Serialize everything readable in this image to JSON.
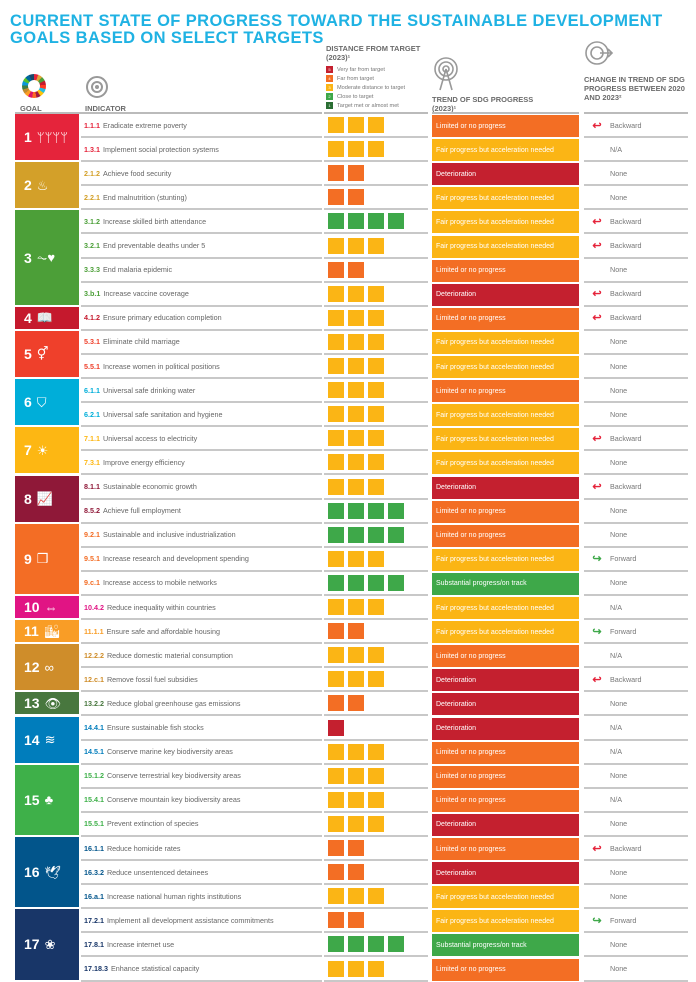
{
  "title": "CURRENT STATE OF PROGRESS TOWARD THE SUSTAINABLE DEVELOPMENT GOALS BASED ON SELECT TARGETS",
  "headers": {
    "goal": "GOAL",
    "indicator": "INDICATOR",
    "distance": "DISTANCE FROM TARGET (2023)¹",
    "trend": "TREND OF SDG PROGRESS (2023)¹",
    "change": "CHANGE IN TREND OF SDG PROGRESS BETWEEN 2020 AND 2023²"
  },
  "legend": [
    {
      "level": "5",
      "label": "Very far from target",
      "color": "#c4202f"
    },
    {
      "level": "4",
      "label": "Far from target",
      "color": "#f36e24"
    },
    {
      "level": "3",
      "label": "Moderate distance to target",
      "color": "#fbb515"
    },
    {
      "level": "2",
      "label": "Close to target",
      "color": "#3ea849"
    },
    {
      "level": "1",
      "label": "Target met or almost met",
      "color": "#2a6e33"
    }
  ],
  "colors": {
    "deterioration": "#c4202f",
    "limited": "#f36e24",
    "fair": "#fbb515",
    "substantial": "#3ea849",
    "backward_arrow": "#e5243b",
    "forward_arrow": "#3ea849"
  },
  "goals": [
    {
      "num": "1",
      "icon": "people-icon",
      "glyph": "ᛘᛘᛘᛘ",
      "color": "#e5243b",
      "rows": 2
    },
    {
      "num": "2",
      "icon": "bowl-icon",
      "glyph": "♨",
      "color": "#d3a029",
      "rows": 2
    },
    {
      "num": "3",
      "icon": "heartbeat-icon",
      "glyph": "⏦♥",
      "color": "#4c9f38",
      "rows": 4
    },
    {
      "num": "4",
      "icon": "book-icon",
      "glyph": "📖",
      "color": "#c5192d",
      "rows": 1
    },
    {
      "num": "5",
      "icon": "gender-icon",
      "glyph": "⚥",
      "color": "#ef402b",
      "rows": 2
    },
    {
      "num": "6",
      "icon": "water-drop-icon",
      "glyph": "⛉",
      "color": "#00aed9",
      "rows": 2
    },
    {
      "num": "7",
      "icon": "sun-icon",
      "glyph": "☀",
      "color": "#fdb713",
      "rows": 2
    },
    {
      "num": "8",
      "icon": "growth-chart-icon",
      "glyph": "📈",
      "color": "#8f1838",
      "rows": 2
    },
    {
      "num": "9",
      "icon": "cubes-icon",
      "glyph": "❒",
      "color": "#f36d25",
      "rows": 3
    },
    {
      "num": "10",
      "icon": "equality-arrows-icon",
      "glyph": "⇔",
      "color": "#e11484",
      "rows": 1
    },
    {
      "num": "11",
      "icon": "city-icon",
      "glyph": "🏙",
      "color": "#f99d26",
      "rows": 1
    },
    {
      "num": "12",
      "icon": "infinity-icon",
      "glyph": "∞",
      "color": "#cf8d2a",
      "rows": 2
    },
    {
      "num": "13",
      "icon": "eye-globe-icon",
      "glyph": "👁",
      "color": "#48773e",
      "rows": 1
    },
    {
      "num": "14",
      "icon": "fish-icon",
      "glyph": "≋",
      "color": "#007dbc",
      "rows": 2
    },
    {
      "num": "15",
      "icon": "tree-icon",
      "glyph": "♣",
      "color": "#3eb049",
      "rows": 3
    },
    {
      "num": "16",
      "icon": "dove-icon",
      "glyph": "🕊",
      "color": "#02558b",
      "rows": 3
    },
    {
      "num": "17",
      "icon": "flower-icon",
      "glyph": "❀",
      "color": "#183668",
      "rows": 3
    }
  ],
  "rows": [
    {
      "code": "1.1.1",
      "text": "Eradicate extreme poverty",
      "codeColor": "#e5243b",
      "squares": 3,
      "sqColor": "#fbb515",
      "trend": "Limited or no progress",
      "trendColor": "#f36e24",
      "change": "Backward",
      "arrow": "backward"
    },
    {
      "code": "1.3.1",
      "text": "Implement social protection systems",
      "codeColor": "#e5243b",
      "squares": 3,
      "sqColor": "#fbb515",
      "trend": "Fair progress but acceleration needed",
      "trendColor": "#fbb515",
      "change": "N/A",
      "arrow": "none"
    },
    {
      "code": "2.1.2",
      "text": "Achieve food security",
      "codeColor": "#d3a029",
      "squares": 2,
      "sqColor": "#f36e24",
      "trend": "Deterioration",
      "trendColor": "#c4202f",
      "change": "None",
      "arrow": "none"
    },
    {
      "code": "2.2.1",
      "text": "End malnutrition (stunting)",
      "codeColor": "#d3a029",
      "squares": 2,
      "sqColor": "#f36e24",
      "trend": "Fair progress but acceleration needed",
      "trendColor": "#fbb515",
      "change": "None",
      "arrow": "none"
    },
    {
      "code": "3.1.2",
      "text": "Increase skilled birth attendance",
      "codeColor": "#4c9f38",
      "squares": 4,
      "sqColor": "#3ea849",
      "trend": "Fair progress but acceleration needed",
      "trendColor": "#fbb515",
      "change": "Backward",
      "arrow": "backward"
    },
    {
      "code": "3.2.1",
      "text": "End preventable deaths under 5",
      "codeColor": "#4c9f38",
      "squares": 3,
      "sqColor": "#fbb515",
      "trend": "Fair progress but acceleration needed",
      "trendColor": "#fbb515",
      "change": "Backward",
      "arrow": "backward"
    },
    {
      "code": "3.3.3",
      "text": "End malaria epidemic",
      "codeColor": "#4c9f38",
      "squares": 2,
      "sqColor": "#f36e24",
      "trend": "Limited or no progress",
      "trendColor": "#f36e24",
      "change": "None",
      "arrow": "none"
    },
    {
      "code": "3.b.1",
      "text": "Increase vaccine coverage",
      "codeColor": "#4c9f38",
      "squares": 3,
      "sqColor": "#fbb515",
      "trend": "Deterioration",
      "trendColor": "#c4202f",
      "change": "Backward",
      "arrow": "backward"
    },
    {
      "code": "4.1.2",
      "text": "Ensure primary education completion",
      "codeColor": "#c5192d",
      "squares": 3,
      "sqColor": "#fbb515",
      "trend": "Limited or no progress",
      "trendColor": "#f36e24",
      "change": "Backward",
      "arrow": "backward"
    },
    {
      "code": "5.3.1",
      "text": "Eliminate child marriage",
      "codeColor": "#ef402b",
      "squares": 3,
      "sqColor": "#fbb515",
      "trend": "Fair progress but acceleration needed",
      "trendColor": "#fbb515",
      "change": "None",
      "arrow": "none"
    },
    {
      "code": "5.5.1",
      "text": " Increase women in political positions",
      "codeColor": "#ef402b",
      "squares": 3,
      "sqColor": "#fbb515",
      "trend": "Fair progress but acceleration needed",
      "trendColor": "#fbb515",
      "change": "None",
      "arrow": "none"
    },
    {
      "code": "6.1.1",
      "text": "Universal safe drinking water",
      "codeColor": "#00aed9",
      "squares": 3,
      "sqColor": "#fbb515",
      "trend": "Limited or no progress",
      "trendColor": "#f36e24",
      "change": "None",
      "arrow": "none"
    },
    {
      "code": "6.2.1",
      "text": "Universal safe sanitation and hygiene",
      "codeColor": "#00aed9",
      "squares": 3,
      "sqColor": "#fbb515",
      "trend": "Fair progress but acceleration needed",
      "trendColor": "#fbb515",
      "change": "None",
      "arrow": "none"
    },
    {
      "code": "7.1.1",
      "text": "Universal access to electricity",
      "codeColor": "#fdb713",
      "squares": 3,
      "sqColor": "#fbb515",
      "trend": "Fair progress but acceleration needed",
      "trendColor": "#fbb515",
      "change": "Backward",
      "arrow": "backward"
    },
    {
      "code": "7.3.1",
      "text": "Improve energy efficiency",
      "codeColor": "#fdb713",
      "squares": 3,
      "sqColor": "#fbb515",
      "trend": "Fair progress but acceleration needed",
      "trendColor": "#fbb515",
      "change": "None",
      "arrow": "none"
    },
    {
      "code": "8.1.1",
      "text": "Sustainable economic growth",
      "codeColor": "#8f1838",
      "squares": 3,
      "sqColor": "#fbb515",
      "trend": "Deterioration",
      "trendColor": "#c4202f",
      "change": "Backward",
      "arrow": "backward"
    },
    {
      "code": "8.5.2",
      "text": "Achieve full employment",
      "codeColor": "#8f1838",
      "squares": 4,
      "sqColor": "#3ea849",
      "trend": "Limited or no progress",
      "trendColor": "#f36e24",
      "change": "None",
      "arrow": "none"
    },
    {
      "code": "9.2.1",
      "text": "Sustainable and inclusive industrialization",
      "codeColor": "#f36d25",
      "squares": 4,
      "sqColor": "#3ea849",
      "trend": "Limited or no progress",
      "trendColor": "#f36e24",
      "change": "None",
      "arrow": "none"
    },
    {
      "code": "9.5.1",
      "text": "Increase research and development spending",
      "codeColor": "#f36d25",
      "squares": 3,
      "sqColor": "#fbb515",
      "trend": "Fair progress but acceleration needed",
      "trendColor": "#fbb515",
      "change": "Forward",
      "arrow": "forward"
    },
    {
      "code": "9.c.1",
      "text": "Increase access to mobile networks",
      "codeColor": "#f36d25",
      "squares": 4,
      "sqColor": "#3ea849",
      "trend": "Substantial progress/on track",
      "trendColor": "#3ea849",
      "change": "None",
      "arrow": "none"
    },
    {
      "code": "10.4.2",
      "text": "Reduce inequality within countries",
      "codeColor": "#e11484",
      "squares": 3,
      "sqColor": "#fbb515",
      "trend": "Fair progress but acceleration needed",
      "trendColor": "#fbb515",
      "change": "N/A",
      "arrow": "none"
    },
    {
      "code": "11.1.1",
      "text": "Ensure safe and affordable housing",
      "codeColor": "#f99d26",
      "squares": 2,
      "sqColor": "#f36e24",
      "trend": "Fair progress but acceleration needed",
      "trendColor": "#fbb515",
      "change": "Forward",
      "arrow": "forward"
    },
    {
      "code": "12.2.2",
      "text": "Reduce domestic material consumption",
      "codeColor": "#cf8d2a",
      "squares": 3,
      "sqColor": "#fbb515",
      "trend": "Limited or no progress",
      "trendColor": "#f36e24",
      "change": "N/A",
      "arrow": "none"
    },
    {
      "code": "12.c.1",
      "text": "Remove fossil fuel subsidies",
      "codeColor": "#cf8d2a",
      "squares": 3,
      "sqColor": "#fbb515",
      "trend": "Deterioration",
      "trendColor": "#c4202f",
      "change": "Backward",
      "arrow": "backward"
    },
    {
      "code": "13.2.2",
      "text": "Reduce global greenhouse gas emissions",
      "codeColor": "#48773e",
      "squares": 2,
      "sqColor": "#f36e24",
      "trend": "Deterioration",
      "trendColor": "#c4202f",
      "change": "None",
      "arrow": "none"
    },
    {
      "code": "14.4.1",
      "text": "Ensure sustainable fish stocks",
      "codeColor": "#007dbc",
      "squares": 1,
      "sqColor": "#c4202f",
      "trend": "Deterioration",
      "trendColor": "#c4202f",
      "change": "N/A",
      "arrow": "none"
    },
    {
      "code": "14.5.1",
      "text": "Conserve marine key biodiversity areas",
      "codeColor": "#007dbc",
      "squares": 3,
      "sqColor": "#fbb515",
      "trend": "Limited or no progress",
      "trendColor": "#f36e24",
      "change": "N/A",
      "arrow": "none"
    },
    {
      "code": "15.1.2",
      "text": "Conserve terrestrial key biodiversity areas",
      "codeColor": "#3eb049",
      "squares": 3,
      "sqColor": "#fbb515",
      "trend": "Limited or no progress",
      "trendColor": "#f36e24",
      "change": "None",
      "arrow": "none"
    },
    {
      "code": "15.4.1",
      "text": "Conserve mountain key biodiversity areas",
      "codeColor": "#3eb049",
      "squares": 3,
      "sqColor": "#fbb515",
      "trend": "Limited or no progress",
      "trendColor": "#f36e24",
      "change": "N/A",
      "arrow": "none"
    },
    {
      "code": "15.5.1",
      "text": "Prevent extinction of species",
      "codeColor": "#3eb049",
      "squares": 3,
      "sqColor": "#fbb515",
      "trend": "Deterioration",
      "trendColor": "#c4202f",
      "change": "None",
      "arrow": "none"
    },
    {
      "code": "16.1.1",
      "text": "Reduce homicide rates",
      "codeColor": "#02558b",
      "squares": 2,
      "sqColor": "#f36e24",
      "trend": "Limited or no progress",
      "trendColor": "#f36e24",
      "change": "Backward",
      "arrow": "backward"
    },
    {
      "code": "16.3.2",
      "text": "Reduce unsentenced detainees",
      "codeColor": "#02558b",
      "squares": 2,
      "sqColor": "#f36e24",
      "trend": "Deterioration",
      "trendColor": "#c4202f",
      "change": "None",
      "arrow": "none"
    },
    {
      "code": "16.a.1",
      "text": "Increase national human rights institutions",
      "codeColor": "#02558b",
      "squares": 3,
      "sqColor": "#fbb515",
      "trend": "Fair progress but acceleration needed",
      "trendColor": "#fbb515",
      "change": "None",
      "arrow": "none"
    },
    {
      "code": "17.2.1",
      "text": "Implement all development assistance commitments",
      "codeColor": "#183668",
      "squares": 2,
      "sqColor": "#f36e24",
      "trend": "Fair progress but acceleration needed",
      "trendColor": "#fbb515",
      "change": "Forward",
      "arrow": "forward"
    },
    {
      "code": "17.8.1",
      "text": "Increase internet use",
      "codeColor": "#183668",
      "squares": 4,
      "sqColor": "#3ea849",
      "trend": "Substantial progress/on track",
      "trendColor": "#3ea849",
      "change": "None",
      "arrow": "none"
    },
    {
      "code": "17.18.3",
      "text": "Enhance statistical capacity",
      "codeColor": "#183668",
      "squares": 3,
      "sqColor": "#fbb515",
      "trend": "Limited or no progress",
      "trendColor": "#f36e24",
      "change": "None",
      "arrow": "none"
    }
  ]
}
